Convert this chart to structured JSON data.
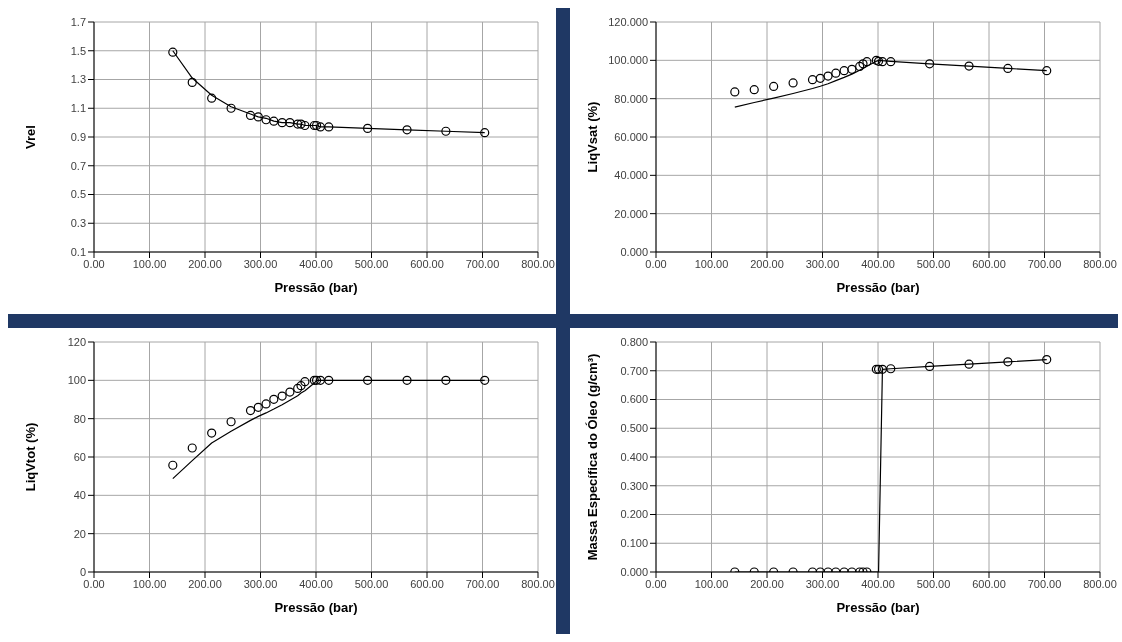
{
  "chart_data": [
    {
      "type": "scatter",
      "xlabel": "Pressão (bar)",
      "ylabel": "Vrel",
      "grid": true,
      "xlim": [
        0,
        800
      ],
      "ylim": [
        0.1,
        1.7
      ],
      "xticks": [
        {
          "value": 0,
          "label": "0.00"
        },
        {
          "value": 100,
          "label": "100.00"
        },
        {
          "value": 200,
          "label": "200.00"
        },
        {
          "value": 300,
          "label": "300.00"
        },
        {
          "value": 400,
          "label": "400.00"
        },
        {
          "value": 500,
          "label": "500.00"
        },
        {
          "value": 600,
          "label": "600.00"
        },
        {
          "value": 700,
          "label": "700.00"
        },
        {
          "value": 800,
          "label": "800.00"
        }
      ],
      "yticks": [
        0.1,
        0.3,
        0.5,
        0.7,
        0.9,
        1.1,
        1.3,
        1.5,
        1.7
      ],
      "series": [
        {
          "type": "scatter",
          "marker": "circle",
          "color": "#000000",
          "x": [
            142,
            177,
            212,
            247,
            282,
            296,
            310,
            324,
            339,
            353,
            367,
            373,
            380,
            397,
            401,
            408,
            423,
            493,
            564,
            634,
            704
          ],
          "values": [
            1.49,
            1.28,
            1.17,
            1.1,
            1.05,
            1.04,
            1.02,
            1.01,
            1.0,
            1.0,
            0.99,
            0.99,
            0.98,
            0.98,
            0.98,
            0.97,
            0.97,
            0.96,
            0.95,
            0.94,
            0.93
          ]
        },
        {
          "type": "line",
          "color": "#000000",
          "x": [
            142,
            177,
            212,
            247,
            282,
            296,
            310,
            324,
            339,
            353,
            367,
            373,
            380,
            397,
            401,
            408,
            423,
            493,
            564,
            634,
            704
          ],
          "values": [
            1.5,
            1.31,
            1.19,
            1.11,
            1.06,
            1.04,
            1.03,
            1.01,
            1.0,
            1.0,
            0.99,
            0.99,
            0.98,
            0.98,
            0.98,
            0.97,
            0.97,
            0.96,
            0.95,
            0.94,
            0.93
          ]
        }
      ]
    },
    {
      "type": "scatter",
      "xlabel": "Pressão (bar)",
      "ylabel": "LiqVsat (%)",
      "grid": true,
      "xlim": [
        0,
        800
      ],
      "ylim": [
        0,
        120
      ],
      "xticks": [
        {
          "value": 0,
          "label": "0.00"
        },
        {
          "value": 100,
          "label": "100.00"
        },
        {
          "value": 200,
          "label": "200.00"
        },
        {
          "value": 300,
          "label": "300.00"
        },
        {
          "value": 400,
          "label": "400.00"
        },
        {
          "value": 500,
          "label": "500.00"
        },
        {
          "value": 600,
          "label": "600.00"
        },
        {
          "value": 700,
          "label": "700.00"
        },
        {
          "value": 800,
          "label": "800.00"
        }
      ],
      "yticks": [
        {
          "value": 0,
          "label": "0.000"
        },
        {
          "value": 20,
          "label": "20.000"
        },
        {
          "value": 40,
          "label": "40.000"
        },
        {
          "value": 60,
          "label": "60.000"
        },
        {
          "value": 80,
          "label": "80.000"
        },
        {
          "value": 100,
          "label": "100.000"
        },
        {
          "value": 120,
          "label": "120.000"
        }
      ],
      "series": [
        {
          "type": "scatter",
          "marker": "circle",
          "color": "#000000",
          "x": [
            142,
            177,
            212,
            247,
            282,
            296,
            310,
            324,
            339,
            353,
            367,
            373,
            380,
            397,
            401,
            408,
            423,
            493,
            564,
            634,
            704
          ],
          "values": [
            83.5,
            84.7,
            86.4,
            88.2,
            89.9,
            90.6,
            91.8,
            93.3,
            94.6,
            95.3,
            96.8,
            98.2,
            99.3,
            100.0,
            99.5,
            99.3,
            99.3,
            98.2,
            97.0,
            95.8,
            94.6
          ]
        },
        {
          "type": "line",
          "color": "#000000",
          "x": [
            142,
            177,
            212,
            247,
            282,
            296,
            310,
            324,
            339,
            353,
            367,
            373,
            380,
            397,
            401,
            408,
            423,
            493,
            564,
            634,
            704
          ],
          "values": [
            75.6,
            78.0,
            80.3,
            82.7,
            85.3,
            86.5,
            87.8,
            89.4,
            91.1,
            92.8,
            94.8,
            95.8,
            96.9,
            99.5,
            100.0,
            99.8,
            99.5,
            98.2,
            97.0,
            95.8,
            94.6
          ]
        }
      ]
    },
    {
      "type": "scatter",
      "xlabel": "Pressão (bar)",
      "ylabel": "LiqVtot (%)",
      "grid": true,
      "xlim": [
        0,
        800
      ],
      "ylim": [
        0,
        120
      ],
      "xticks": [
        {
          "value": 0,
          "label": "0.00"
        },
        {
          "value": 100,
          "label": "100.00"
        },
        {
          "value": 200,
          "label": "200.00"
        },
        {
          "value": 300,
          "label": "300.00"
        },
        {
          "value": 400,
          "label": "400.00"
        },
        {
          "value": 500,
          "label": "500.00"
        },
        {
          "value": 600,
          "label": "600.00"
        },
        {
          "value": 700,
          "label": "700.00"
        },
        {
          "value": 800,
          "label": "800.00"
        }
      ],
      "yticks": [
        0,
        20,
        40,
        60,
        80,
        100,
        120
      ],
      "series": [
        {
          "type": "scatter",
          "marker": "circle",
          "color": "#000000",
          "x": [
            142,
            177,
            212,
            247,
            282,
            296,
            310,
            324,
            339,
            353,
            367,
            373,
            380,
            397,
            401,
            408,
            423,
            493,
            564,
            634,
            704
          ],
          "values": [
            55.7,
            64.7,
            72.5,
            78.4,
            84.2,
            85.9,
            87.7,
            90.1,
            91.8,
            93.9,
            95.8,
            97.2,
            99.3,
            100,
            100,
            100,
            100,
            100,
            100,
            100,
            100
          ]
        },
        {
          "type": "line",
          "color": "#000000",
          "x": [
            142,
            177,
            212,
            247,
            282,
            296,
            310,
            324,
            339,
            353,
            367,
            373,
            380,
            397,
            401,
            408,
            423,
            493,
            564,
            634,
            704
          ],
          "values": [
            48.7,
            58.1,
            67.3,
            73.4,
            79.1,
            81.2,
            83.0,
            85.0,
            87.3,
            89.6,
            92.0,
            93.4,
            94.6,
            98.6,
            100,
            100,
            100,
            100,
            100,
            100,
            100
          ]
        }
      ]
    },
    {
      "type": "scatter",
      "xlabel": "Pressão (bar)",
      "ylabel": "Massa Específica do Óleo (g/cm³)",
      "grid": true,
      "xlim": [
        0,
        800
      ],
      "ylim": [
        0,
        0.8
      ],
      "xticks": [
        {
          "value": 0,
          "label": "0.00"
        },
        {
          "value": 100,
          "label": "100.00"
        },
        {
          "value": 200,
          "label": "200.00"
        },
        {
          "value": 300,
          "label": "300.00"
        },
        {
          "value": 400,
          "label": "400.00"
        },
        {
          "value": 500,
          "label": "500.00"
        },
        {
          "value": 600,
          "label": "600.00"
        },
        {
          "value": 700,
          "label": "700.00"
        },
        {
          "value": 800,
          "label": "800.00"
        }
      ],
      "yticks": [
        {
          "value": 0,
          "label": "0.000"
        },
        {
          "value": 0.1,
          "label": "0.100"
        },
        {
          "value": 0.2,
          "label": "0.200"
        },
        {
          "value": 0.3,
          "label": "0.300"
        },
        {
          "value": 0.4,
          "label": "0.400"
        },
        {
          "value": 0.5,
          "label": "0.500"
        },
        {
          "value": 0.6,
          "label": "0.600"
        },
        {
          "value": 0.7,
          "label": "0.700"
        },
        {
          "value": 0.8,
          "label": "0.800"
        }
      ],
      "series": [
        {
          "type": "scatter",
          "marker": "circle",
          "color": "#000000",
          "x": [
            142,
            177,
            212,
            247,
            282,
            296,
            310,
            324,
            339,
            353,
            367,
            373,
            380,
            397,
            401,
            408,
            423,
            493,
            564,
            634,
            704
          ],
          "values": [
            0,
            0,
            0,
            0,
            0,
            0,
            0,
            0,
            0,
            0,
            0,
            0,
            0,
            0.705,
            0.705,
            0.705,
            0.707,
            0.715,
            0.723,
            0.731,
            0.739
          ]
        },
        {
          "type": "line",
          "color": "#000000",
          "x": [
            142,
            177,
            212,
            247,
            282,
            296,
            310,
            324,
            339,
            353,
            367,
            373,
            380,
            397,
            401,
            408,
            423,
            493,
            564,
            634,
            704
          ],
          "values": [
            0,
            0,
            0,
            0,
            0,
            0,
            0,
            0,
            0,
            0,
            0,
            0,
            0,
            0,
            0,
            0.705,
            0.707,
            0.715,
            0.723,
            0.731,
            0.739
          ]
        }
      ]
    }
  ]
}
